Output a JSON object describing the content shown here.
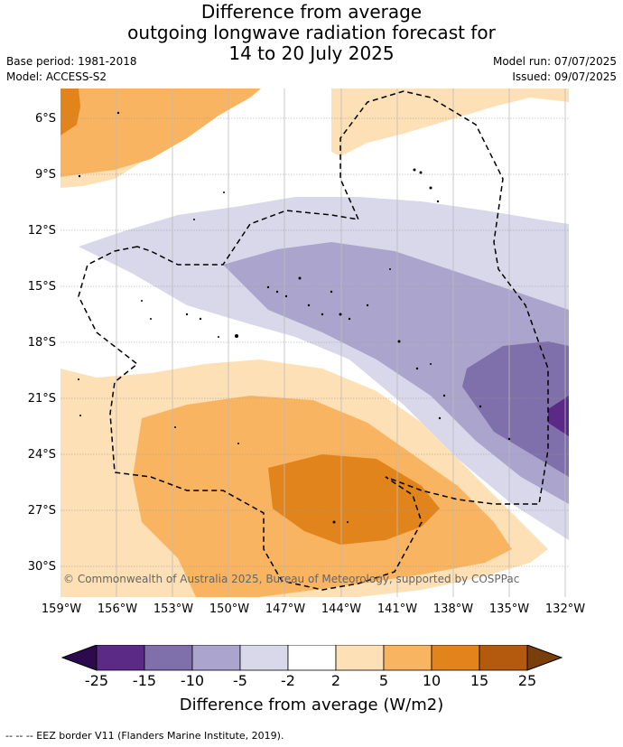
{
  "header": {
    "title_lines": [
      "Difference from average",
      "outgoing longwave radiation forecast for",
      "14 to 20 July 2025"
    ],
    "base_period": "Base period: 1981-2018",
    "model": "Model: ACCESS-S2",
    "model_run": "Model run: 07/07/2025",
    "issued": "Issued: 09/07/2025"
  },
  "map": {
    "lat_labels": [
      "6°S",
      "9°S",
      "12°S",
      "15°S",
      "18°S",
      "21°S",
      "24°S",
      "27°S",
      "30°S"
    ],
    "lon_labels": [
      "159°W",
      "156°W",
      "153°W",
      "150°W",
      "147°W",
      "144°W",
      "141°W",
      "138°W",
      "135°W",
      "132°W"
    ],
    "copyright": "© Commonwealth of Australia 2025, Bureau of Meteorology, supported by COSPPac"
  },
  "colorbar": {
    "ticks": [
      "-25",
      "-15",
      "-10",
      "-5",
      "-2",
      "2",
      "5",
      "10",
      "15",
      "25"
    ],
    "colors": [
      "#5b2a86",
      "#7f6faa",
      "#aba4cc",
      "#d8d8ea",
      "#ffffff",
      "#fde0b5",
      "#f9b462",
      "#e2841c",
      "#b45a0e"
    ],
    "under_color": "#2d0a4e",
    "over_color": "#7a3e0b",
    "label": "Difference from average (W/m2)"
  },
  "legend": {
    "eez": "-- -- -- EEZ border V11 (Flanders Marine Institute, 2019)."
  }
}
